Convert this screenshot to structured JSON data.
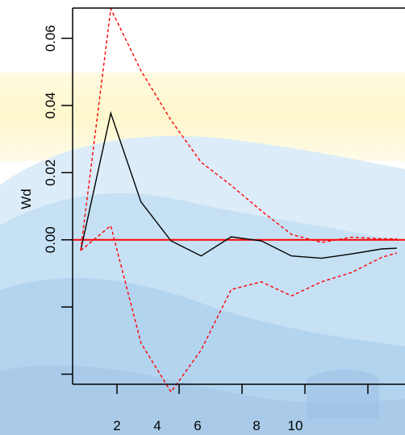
{
  "chart_data": {
    "type": "line",
    "title": "",
    "xlabel": "",
    "ylabel": "Wd",
    "xlim": [
      0.5,
      12
    ],
    "ylim": [
      -0.043,
      0.069
    ],
    "x_ticks": [
      {
        "value": 2,
        "label": "2"
      },
      {
        "value": 4,
        "label": "4"
      },
      {
        "value": 6,
        "label": "6"
      },
      {
        "value": 8,
        "label": "8"
      },
      {
        "value": 10,
        "label": "10"
      },
      {
        "value": 12,
        "label": ""
      }
    ],
    "y_ticks": [
      {
        "value": 0.06,
        "label": "0.06"
      },
      {
        "value": 0.04,
        "label": "0.04"
      },
      {
        "value": 0.02,
        "label": "0.02"
      },
      {
        "value": 0.0,
        "label": "0.00"
      },
      {
        "value": -0.02,
        "label": ""
      },
      {
        "value": -0.04,
        "label": ""
      }
    ],
    "reference_line": {
      "y": 0.0,
      "color": "#ff0000"
    },
    "series": [
      {
        "style": "solid",
        "color": "#000000",
        "x": [
          1.5,
          2.5,
          3.5,
          4.5,
          5.5,
          6.5,
          7.5,
          8.5,
          9.5,
          10.5,
          11.5,
          12
        ],
        "y": [
          -0.0032,
          0.0377,
          0.0113,
          -0.0003,
          -0.0048,
          0.0009,
          -0.0003,
          -0.0048,
          -0.0055,
          -0.0042,
          -0.0027,
          -0.0025
        ]
      },
      {
        "style": "dashed",
        "color": "#ff0000",
        "x": [
          1.5,
          2.5,
          3.5,
          4.5,
          5.5,
          6.5,
          7.5,
          8.5,
          9.5,
          10.5,
          11.5,
          12
        ],
        "y": [
          -0.0032,
          0.0688,
          0.0504,
          0.0356,
          0.0231,
          0.0162,
          0.0086,
          0.0016,
          -0.0008,
          0.0008,
          0.0003,
          0.0003
        ]
      },
      {
        "style": "dashed",
        "color": "#ff0000",
        "x": [
          1.5,
          2.5,
          3.5,
          4.5,
          5.5,
          6.5,
          7.5,
          8.5,
          9.5,
          10.5,
          11.5,
          12
        ],
        "y": [
          -0.0032,
          0.0042,
          -0.0307,
          -0.0453,
          -0.0328,
          -0.0148,
          -0.0125,
          -0.0167,
          -0.0125,
          -0.0097,
          -0.0052,
          -0.0039
        ]
      }
    ]
  }
}
